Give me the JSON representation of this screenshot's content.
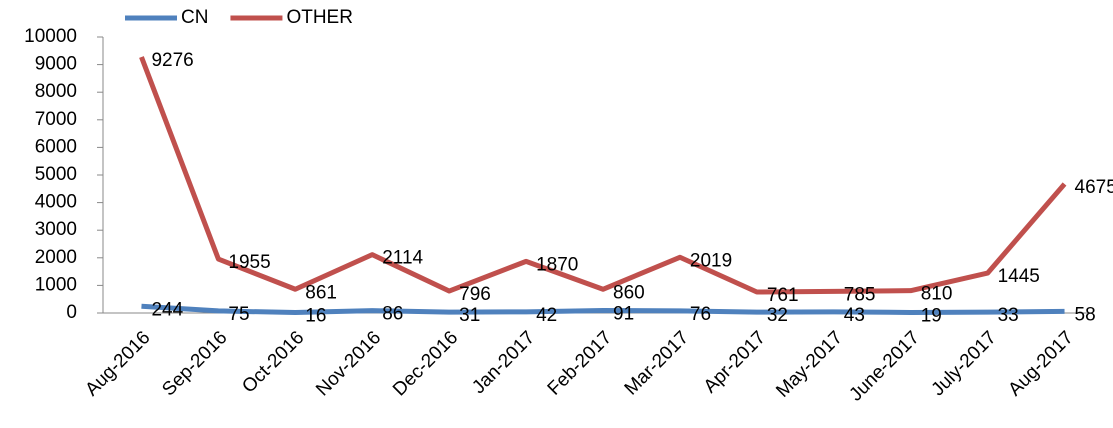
{
  "chart_data": {
    "type": "line",
    "categories": [
      "Aug-2016",
      "Sep-2016",
      "Oct-2016",
      "Nov-2016",
      "Dec-2016",
      "Jan-2017",
      "Feb-2017",
      "Mar-2017",
      "Apr-2017",
      "May-2017",
      "June-2017",
      "July-2017",
      "Aug-2017"
    ],
    "series": [
      {
        "name": "CN",
        "color": "#4f81bd",
        "values": [
          244,
          75,
          16,
          86,
          31,
          42,
          91,
          76,
          32,
          43,
          19,
          33,
          58
        ]
      },
      {
        "name": "OTHER",
        "color": "#c0504d",
        "values": [
          9276,
          1955,
          861,
          2114,
          796,
          1870,
          860,
          2019,
          761,
          785,
          810,
          1445,
          4675
        ]
      }
    ],
    "ylim": [
      0,
      10000
    ],
    "yticks": [
      0,
      1000,
      2000,
      3000,
      4000,
      5000,
      6000,
      7000,
      8000,
      9000,
      10000
    ],
    "grid": false,
    "legend": "top"
  }
}
